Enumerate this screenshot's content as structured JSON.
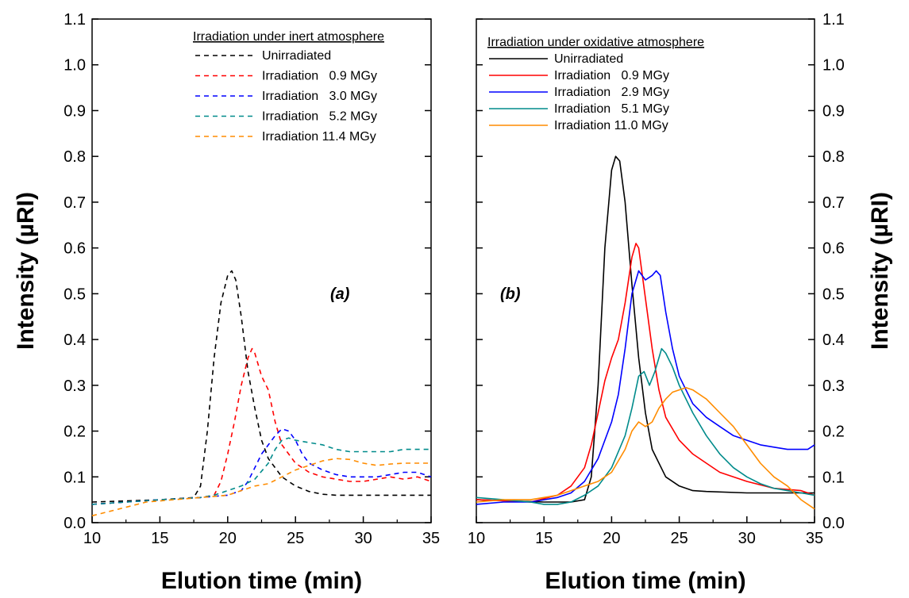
{
  "chart_data": [
    {
      "type": "line",
      "panel_label": "(a)",
      "xlabel": "Elution time (min)",
      "ylabel": "Intensity (µRI)",
      "xlim": [
        10,
        35
      ],
      "ylim": [
        0.0,
        1.1
      ],
      "xticks": [
        10,
        15,
        20,
        25,
        30,
        35
      ],
      "yticks": [
        0.0,
        0.1,
        0.2,
        0.3,
        0.4,
        0.5,
        0.6,
        0.7,
        0.8,
        0.9,
        1.0,
        1.1
      ],
      "ytick_side": "left",
      "line_style": "dashed",
      "legend_title": "Irradiation under inert atmosphere",
      "legend_position": "top-right",
      "series": [
        {
          "name": "Unirradiated",
          "color": "#000000",
          "x": [
            10,
            15,
            17.5,
            18,
            18.5,
            19,
            19.5,
            20,
            20.3,
            20.6,
            21,
            21.5,
            22,
            22.5,
            23,
            24,
            25,
            26,
            27,
            28,
            30,
            32,
            35
          ],
          "y": [
            0.045,
            0.05,
            0.055,
            0.08,
            0.2,
            0.36,
            0.48,
            0.54,
            0.55,
            0.53,
            0.45,
            0.33,
            0.25,
            0.18,
            0.14,
            0.1,
            0.08,
            0.068,
            0.062,
            0.06,
            0.06,
            0.06,
            0.06
          ]
        },
        {
          "name": "Irradiation   0.9 MGy",
          "color": "#ff0000",
          "x": [
            10,
            15,
            18,
            19,
            19.5,
            20,
            20.5,
            21,
            21.5,
            21.8,
            22,
            22.5,
            23,
            23.5,
            24,
            25,
            26,
            27,
            28,
            29,
            30,
            31,
            32,
            33,
            34,
            35
          ],
          "y": [
            0.04,
            0.05,
            0.055,
            0.06,
            0.09,
            0.15,
            0.22,
            0.3,
            0.36,
            0.38,
            0.37,
            0.32,
            0.29,
            0.22,
            0.17,
            0.13,
            0.11,
            0.1,
            0.095,
            0.09,
            0.09,
            0.095,
            0.1,
            0.095,
            0.1,
            0.09
          ]
        },
        {
          "name": "Irradiation   3.0 MGy",
          "color": "#0000ff",
          "x": [
            10,
            15,
            18,
            20,
            21,
            21.5,
            22,
            22.5,
            23,
            23.5,
            24,
            24.5,
            25,
            25.5,
            26,
            27,
            28,
            29,
            30,
            31,
            32,
            33,
            34,
            35
          ],
          "y": [
            0.04,
            0.05,
            0.055,
            0.06,
            0.07,
            0.09,
            0.12,
            0.15,
            0.17,
            0.19,
            0.205,
            0.2,
            0.18,
            0.15,
            0.13,
            0.115,
            0.105,
            0.1,
            0.1,
            0.1,
            0.105,
            0.11,
            0.11,
            0.1
          ]
        },
        {
          "name": "Irradiation   5.2 MGy",
          "color": "#008b8b",
          "x": [
            10,
            15,
            18,
            19,
            20,
            21,
            22,
            23,
            23.5,
            24,
            24.5,
            25,
            26,
            27,
            28,
            29,
            30,
            31,
            32,
            33,
            34,
            35
          ],
          "y": [
            0.04,
            0.05,
            0.055,
            0.06,
            0.07,
            0.08,
            0.095,
            0.13,
            0.16,
            0.18,
            0.185,
            0.18,
            0.175,
            0.17,
            0.16,
            0.155,
            0.155,
            0.155,
            0.155,
            0.16,
            0.16,
            0.16
          ]
        },
        {
          "name": "Irradiation 11.4 MGy",
          "color": "#ff8c00",
          "x": [
            10,
            12,
            14,
            16,
            18,
            20,
            21,
            22,
            23,
            24,
            25,
            26,
            27,
            28,
            29,
            30,
            31,
            32,
            33,
            34,
            35
          ],
          "y": [
            0.015,
            0.03,
            0.045,
            0.05,
            0.055,
            0.06,
            0.07,
            0.08,
            0.085,
            0.1,
            0.115,
            0.125,
            0.135,
            0.14,
            0.138,
            0.13,
            0.125,
            0.128,
            0.13,
            0.13,
            0.13
          ]
        }
      ]
    },
    {
      "type": "line",
      "panel_label": "(b)",
      "xlabel": "Elution time (min)",
      "ylabel": "Intensity (µRI)",
      "xlim": [
        10,
        35
      ],
      "ylim": [
        0.0,
        1.1
      ],
      "xticks": [
        10,
        15,
        20,
        25,
        30,
        35
      ],
      "yticks": [
        0.0,
        0.1,
        0.2,
        0.3,
        0.4,
        0.5,
        0.6,
        0.7,
        0.8,
        0.9,
        1.0,
        1.1
      ],
      "ytick_side": "right",
      "line_style": "solid",
      "legend_title": "Irradiation under oxidative atmosphere",
      "legend_position": "top-left",
      "series": [
        {
          "name": "Unirradiated",
          "color": "#000000",
          "x": [
            10,
            12,
            15,
            17,
            18,
            18.5,
            19,
            19.5,
            20,
            20.3,
            20.6,
            21,
            21.5,
            22,
            22.5,
            23,
            24,
            25,
            26,
            27,
            30,
            33,
            35
          ],
          "y": [
            0.05,
            0.048,
            0.045,
            0.045,
            0.05,
            0.1,
            0.3,
            0.6,
            0.77,
            0.8,
            0.79,
            0.7,
            0.52,
            0.36,
            0.24,
            0.16,
            0.1,
            0.08,
            0.07,
            0.068,
            0.065,
            0.065,
            0.065
          ]
        },
        {
          "name": "Irradiation   0.9 MGy",
          "color": "#ff0000",
          "x": [
            10,
            12,
            14,
            16,
            17,
            18,
            18.5,
            19,
            19.5,
            20,
            20.5,
            21,
            21.5,
            21.8,
            22,
            22.5,
            23,
            23.5,
            24,
            25,
            26,
            27,
            28,
            30,
            32,
            34,
            35
          ],
          "y": [
            0.05,
            0.048,
            0.045,
            0.06,
            0.08,
            0.12,
            0.17,
            0.24,
            0.31,
            0.36,
            0.4,
            0.48,
            0.58,
            0.61,
            0.6,
            0.49,
            0.38,
            0.29,
            0.23,
            0.18,
            0.15,
            0.13,
            0.11,
            0.09,
            0.075,
            0.07,
            0.06
          ]
        },
        {
          "name": "Irradiation   2.9 MGy",
          "color": "#0000ff",
          "x": [
            10,
            12,
            14,
            16,
            17,
            18,
            19,
            20,
            20.5,
            21,
            21.5,
            22,
            22.5,
            23,
            23.3,
            23.6,
            24,
            24.5,
            25,
            26,
            27,
            28,
            29,
            30,
            31,
            32,
            33,
            34,
            34.5,
            35
          ],
          "y": [
            0.04,
            0.045,
            0.045,
            0.055,
            0.065,
            0.09,
            0.14,
            0.22,
            0.28,
            0.38,
            0.5,
            0.55,
            0.53,
            0.54,
            0.55,
            0.54,
            0.46,
            0.38,
            0.32,
            0.26,
            0.23,
            0.21,
            0.19,
            0.18,
            0.17,
            0.165,
            0.16,
            0.16,
            0.16,
            0.17
          ]
        },
        {
          "name": "Irradiation   5.1 MGy",
          "color": "#008b8b",
          "x": [
            10,
            12,
            14,
            15,
            16,
            17,
            18,
            19,
            20,
            21,
            21.5,
            22,
            22.4,
            22.8,
            23.2,
            23.7,
            24,
            24.5,
            25,
            26,
            27,
            28,
            29,
            30,
            31,
            32,
            33,
            34,
            35
          ],
          "y": [
            0.055,
            0.05,
            0.045,
            0.04,
            0.04,
            0.045,
            0.06,
            0.08,
            0.12,
            0.19,
            0.25,
            0.32,
            0.33,
            0.3,
            0.33,
            0.38,
            0.37,
            0.34,
            0.3,
            0.24,
            0.19,
            0.15,
            0.12,
            0.1,
            0.085,
            0.075,
            0.07,
            0.065,
            0.06
          ]
        },
        {
          "name": "Irradiation 11.0 MGy",
          "color": "#ff8c00",
          "x": [
            10,
            12,
            14,
            16,
            17,
            18,
            19,
            20,
            21,
            21.5,
            22,
            22.5,
            23,
            23.5,
            24,
            24.5,
            25,
            25.5,
            26,
            27,
            28,
            29,
            30,
            31,
            32,
            33,
            34,
            35
          ],
          "y": [
            0.045,
            0.05,
            0.05,
            0.06,
            0.07,
            0.08,
            0.09,
            0.11,
            0.16,
            0.2,
            0.22,
            0.21,
            0.22,
            0.25,
            0.27,
            0.285,
            0.29,
            0.295,
            0.29,
            0.27,
            0.24,
            0.21,
            0.17,
            0.13,
            0.1,
            0.08,
            0.05,
            0.03
          ]
        }
      ]
    }
  ]
}
